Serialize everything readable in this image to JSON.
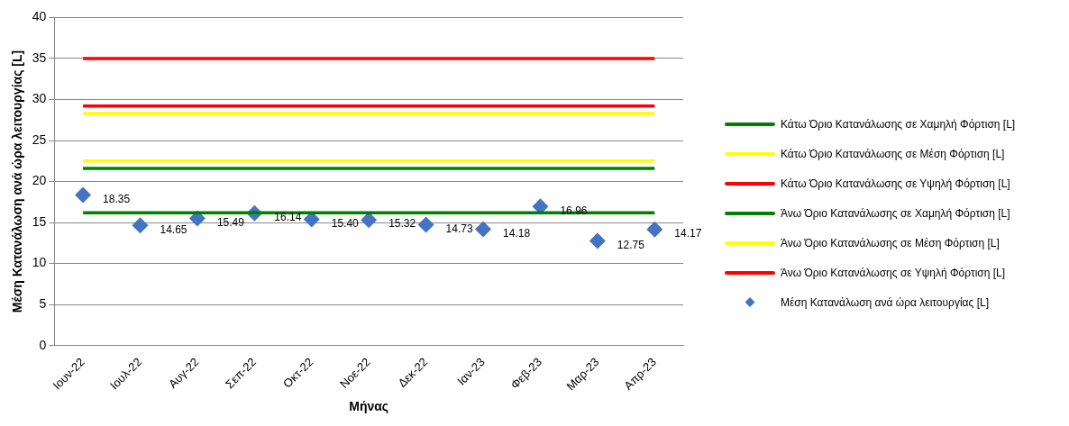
{
  "chart_data": {
    "type": "line",
    "xlabel": "Μήνας",
    "ylabel": "Μέση Κατανάλωση ανά ώρα λειτουργίας [L]",
    "categories": [
      "Ιουν-22",
      "Ιουλ-22",
      "Αυγ-22",
      "Σεπ-22",
      "Οκτ-22",
      "Νοε-22",
      "Δεκ-22",
      "Ιαν-23",
      "Φεβ-23",
      "Μαρ-23",
      "Απρ-23"
    ],
    "series": [
      {
        "name": "Κάτω Όριο Κατανάλωσης σε Χαμηλή Φόρτιση [L]",
        "color": "#008000",
        "values": [
          16.2,
          16.2,
          16.2,
          16.2,
          16.2,
          16.2,
          16.2,
          16.2,
          16.2,
          16.2,
          16.2
        ]
      },
      {
        "name": "Κάτω Όριο Κατανάλωσης σε Μέση Φόρτιση [L]",
        "color": "#ffff00",
        "values": [
          22.5,
          22.5,
          22.5,
          22.5,
          22.5,
          22.5,
          22.5,
          22.5,
          22.5,
          22.5,
          22.5
        ]
      },
      {
        "name": "Κάτω Όριο Κατανάλωσης σε Υψηλή Φόρτιση [L]",
        "color": "#ff0000",
        "values": [
          29.2,
          29.2,
          29.2,
          29.2,
          29.2,
          29.2,
          29.2,
          29.2,
          29.2,
          29.2,
          29.2
        ]
      },
      {
        "name": "Άνω Όριο Κατανάλωσης σε Χαμηλή Φόρτιση [L]",
        "color": "#008000",
        "values": [
          21.6,
          21.6,
          21.6,
          21.6,
          21.6,
          21.6,
          21.6,
          21.6,
          21.6,
          21.6,
          21.6
        ]
      },
      {
        "name": "Άνω Όριο Κατανάλωσης σε Μέση Φόρτιση [L]",
        "color": "#ffff00",
        "values": [
          28.3,
          28.3,
          28.3,
          28.3,
          28.3,
          28.3,
          28.3,
          28.3,
          28.3,
          28.3,
          28.3
        ]
      },
      {
        "name": "Άνω Όριο Κατανάλωσης σε Υψηλή Φόρτιση [L]",
        "color": "#ff0000",
        "values": [
          35,
          35,
          35,
          35,
          35,
          35,
          35,
          35,
          35,
          35,
          35
        ]
      },
      {
        "name": "Μέση Κατανάλωση ανά ώρα λειτουργίας [L]",
        "type": "scatter",
        "marker": "diamond",
        "color": "#4472c4",
        "values": [
          18.35,
          14.65,
          15.49,
          16.14,
          15.4,
          15.32,
          14.73,
          14.18,
          16.96,
          12.75,
          14.17
        ],
        "value_labels": [
          "18.35",
          "14.65",
          "15.49",
          "16.14",
          "15.40",
          "15.32",
          "14.73",
          "14.18",
          "16.96",
          "12.75",
          "14.17"
        ]
      }
    ],
    "ylim": [
      0,
      40
    ],
    "yticks": [
      0,
      5,
      10,
      15,
      20,
      25,
      30,
      35,
      40
    ],
    "grid": "y",
    "legend": "right"
  }
}
